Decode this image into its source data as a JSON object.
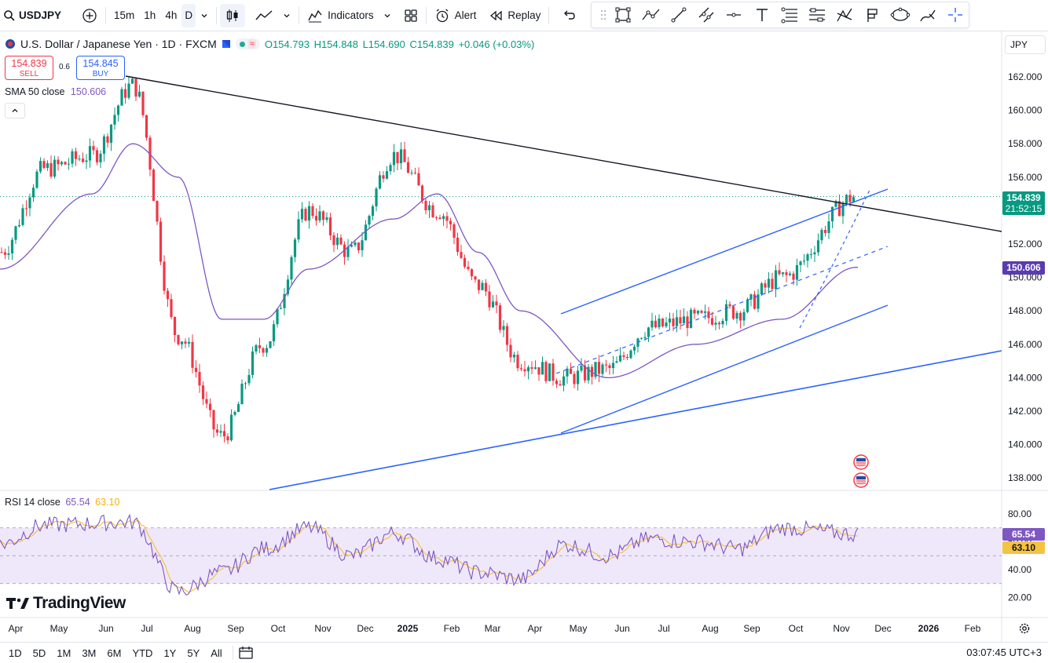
{
  "toolbar": {
    "symbol": "USDJPY",
    "intervals": [
      "15m",
      "1h",
      "4h",
      "D"
    ],
    "active_interval": "D",
    "indicators_label": "Indicators",
    "alert_label": "Alert",
    "replay_label": "Replay"
  },
  "legend": {
    "title": "U.S. Dollar / Japanese Yen · 1D · FXCM",
    "open": "O154.793",
    "high": "H154.848",
    "low": "L154.690",
    "close": "C154.839",
    "change": "+0.046 (+0.03%)"
  },
  "trade": {
    "sell_price": "154.839",
    "sell_label": "SELL",
    "spread": "0.6",
    "buy_price": "154.845",
    "buy_label": "BUY"
  },
  "sma_legend": {
    "name": "SMA 50 close",
    "value": "150.606"
  },
  "rsi_legend": {
    "name": "RSI 14 close",
    "value1": "65.54",
    "value2": "63.10"
  },
  "currency": "JPY",
  "price_tags": {
    "last_price": "154.839",
    "countdown": "21:52:15",
    "sma": "150.606",
    "rsi": "65.54",
    "rsi_ma": "63.10"
  },
  "colors": {
    "up": "#089981",
    "down": "#f23645",
    "sma": "#7e57c2",
    "trendline_blue": "#2962ff",
    "rsi_line": "#7e57c2",
    "rsi_ma": "#f5c342",
    "rsi_band": "#efe8fb"
  },
  "price_axis": [
    "162.000",
    "160.000",
    "158.000",
    "156.000",
    "154.000",
    "152.000",
    "150.000",
    "148.000",
    "146.000",
    "144.000",
    "142.000",
    "140.000",
    "138.000"
  ],
  "rsi_axis": [
    "80.00",
    "60.00",
    "40.00",
    "20.00"
  ],
  "time_axis": [
    "Apr",
    "May",
    "Jun",
    "Jul",
    "Aug",
    "Sep",
    "Oct",
    "Nov",
    "Dec",
    "2025",
    "Feb",
    "Mar",
    "Apr",
    "May",
    "Jun",
    "Jul",
    "Aug",
    "Sep",
    "Oct",
    "Nov",
    "Dec",
    "2026",
    "Feb"
  ],
  "range_buttons": [
    "1D",
    "5D",
    "1M",
    "3M",
    "6M",
    "YTD",
    "1Y",
    "5Y",
    "All"
  ],
  "clock": "03:07:45 UTC+3",
  "logo_text": "TradingView",
  "chart_data": {
    "type": "candlestick",
    "symbol": "USDJPY",
    "timeframe": "1D",
    "close_anchors": [
      {
        "x": "Apr",
        "y": 151.5
      },
      {
        "x": "May",
        "y": 156.5
      },
      {
        "x": "Jun",
        "y": 157.3
      },
      {
        "x": "Jul",
        "y": 161.5
      },
      {
        "x": "Aug",
        "y": 146.5
      },
      {
        "x": "Sep",
        "y": 140.5
      },
      {
        "x": "Oct",
        "y": 146.0
      },
      {
        "x": "Nov",
        "y": 154.0
      },
      {
        "x": "Dec",
        "y": 151.5
      },
      {
        "x": "2025",
        "y": 157.3
      },
      {
        "x": "Feb",
        "y": 154.0
      },
      {
        "x": "Mar",
        "y": 149.5
      },
      {
        "x": "Apr",
        "y": 145.0
      },
      {
        "x": "May",
        "y": 144.0
      },
      {
        "x": "Jun",
        "y": 144.5
      },
      {
        "x": "Jul",
        "y": 147.0
      },
      {
        "x": "Aug",
        "y": 147.5
      },
      {
        "x": "Sep",
        "y": 148.0
      },
      {
        "x": "Oct",
        "y": 150.0
      },
      {
        "x": "Nov",
        "y": 154.839
      }
    ],
    "sma50_anchors": [
      {
        "x": "Apr",
        "y": 150.5
      },
      {
        "x": "Jun",
        "y": 155.0
      },
      {
        "x": "Jul",
        "y": 158.0
      },
      {
        "x": "Aug",
        "y": 156.0
      },
      {
        "x": "Sep",
        "y": 147.5
      },
      {
        "x": "Oct",
        "y": 147.5
      },
      {
        "x": "Nov",
        "y": 150.5
      },
      {
        "x": "2025",
        "y": 153.5
      },
      {
        "x": "Feb",
        "y": 155.0
      },
      {
        "x": "Mar",
        "y": 151.5
      },
      {
        "x": "Apr",
        "y": 148.0
      },
      {
        "x": "Jun",
        "y": 144.0
      },
      {
        "x": "Aug",
        "y": 146.0
      },
      {
        "x": "Oct",
        "y": 147.5
      },
      {
        "x": "Nov",
        "y": 150.606
      }
    ],
    "rsi_anchors": [
      {
        "x": "Apr",
        "y": 58
      },
      {
        "x": "May",
        "y": 72
      },
      {
        "x": "Jul",
        "y": 74
      },
      {
        "x": "Aug",
        "y": 24
      },
      {
        "x": "Sep",
        "y": 38
      },
      {
        "x": "Oct",
        "y": 55
      },
      {
        "x": "Nov",
        "y": 70
      },
      {
        "x": "Dec",
        "y": 50
      },
      {
        "x": "2025",
        "y": 66
      },
      {
        "x": "Feb",
        "y": 48
      },
      {
        "x": "Mar",
        "y": 38
      },
      {
        "x": "Apr",
        "y": 33
      },
      {
        "x": "May",
        "y": 58
      },
      {
        "x": "Jun",
        "y": 50
      },
      {
        "x": "Jul",
        "y": 62
      },
      {
        "x": "Aug",
        "y": 60
      },
      {
        "x": "Sep",
        "y": 55
      },
      {
        "x": "Oct",
        "y": 70
      },
      {
        "x": "Nov",
        "y": 65.54
      }
    ],
    "ylim": [
      137,
      163
    ],
    "rsi_ylim": [
      10,
      90
    ]
  }
}
